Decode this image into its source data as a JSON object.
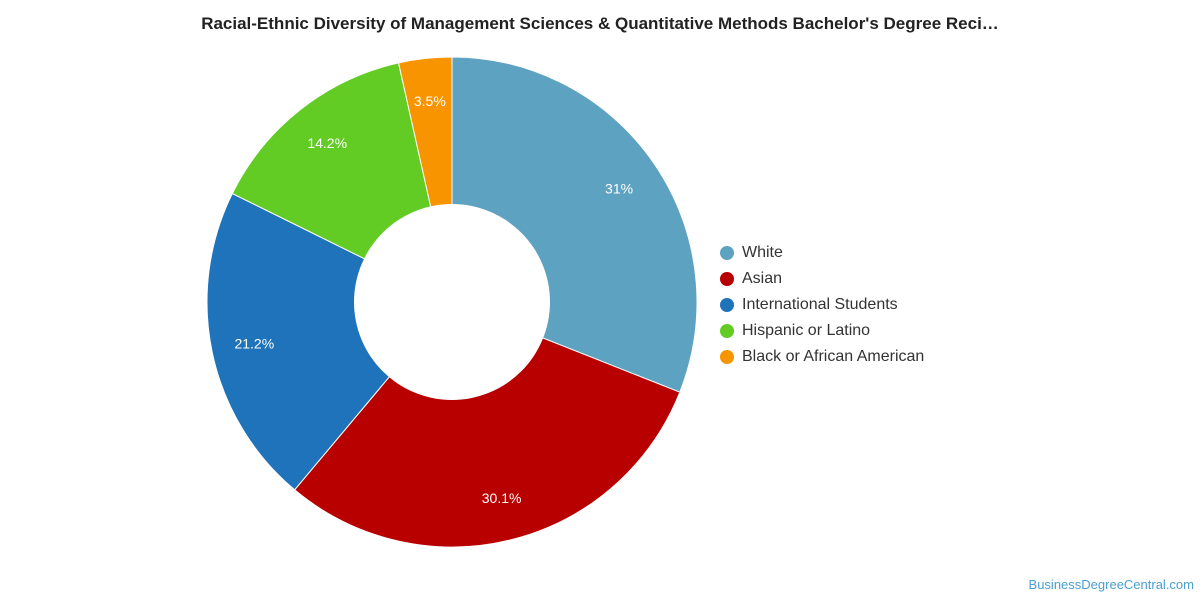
{
  "title": "Racial-Ethnic Diversity of Management Sciences & Quantitative Methods Bachelor's Degree Reci…",
  "watermark": "BusinessDegreeCentral.com",
  "chart_data": {
    "type": "pie",
    "variant": "donut",
    "title": "Racial-Ethnic Diversity of Management Sciences & Quantitative Methods Bachelor's Degree Reci…",
    "legend_position": "right",
    "slices": [
      {
        "name": "White",
        "value": 31,
        "label": "31%",
        "color": "#5ea2c1"
      },
      {
        "name": "Asian",
        "value": 30.1,
        "label": "30.1%",
        "color": "#b80000"
      },
      {
        "name": "International Students",
        "value": 21.2,
        "label": "21.2%",
        "color": "#1f73ba"
      },
      {
        "name": "Hispanic or Latino",
        "value": 14.2,
        "label": "14.2%",
        "color": "#62cc25"
      },
      {
        "name": "Black or African American",
        "value": 3.5,
        "label": "3.5%",
        "color": "#f79400"
      }
    ]
  }
}
